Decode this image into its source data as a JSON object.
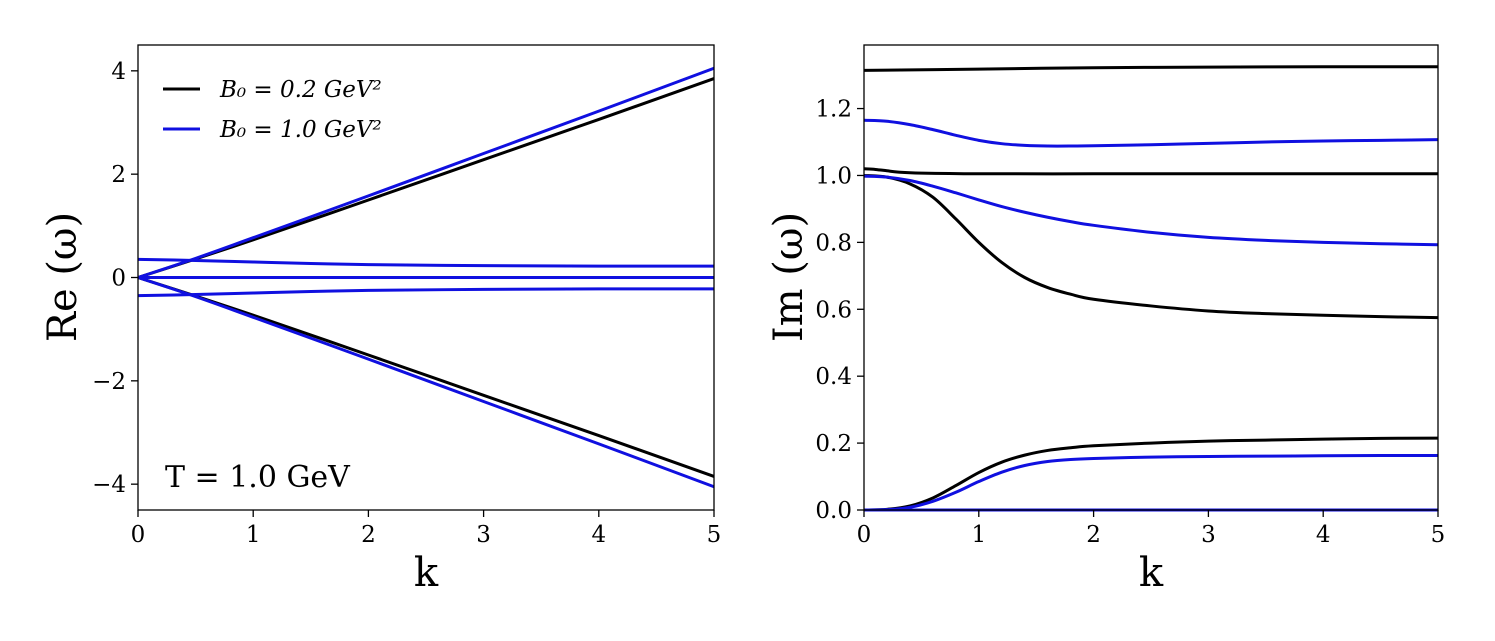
{
  "chart_data": [
    {
      "type": "line",
      "xlabel": "k",
      "ylabel": "Re (ω)",
      "xlim": [
        0,
        5
      ],
      "ylim": [
        -4.5,
        4.5
      ],
      "xticks": [
        0,
        1,
        2,
        3,
        4,
        5
      ],
      "xtick_labels": [
        "0",
        "1",
        "2",
        "3",
        "4",
        "5"
      ],
      "yticks": [
        -4,
        -2,
        0,
        2,
        4
      ],
      "ytick_labels": [
        "−4",
        "−2",
        "0",
        "2",
        "4"
      ],
      "grid": false,
      "legend": {
        "position": "top-left",
        "entries": [
          {
            "label": "B₀ = 0.2 GeV²",
            "color": "#000000"
          },
          {
            "label": "B₀ = 1.0 GeV²",
            "color": "#1010e0"
          }
        ]
      },
      "annotation": "T = 1.0 GeV",
      "series": [
        {
          "group": "B₀ = 0.2 GeV²",
          "color": "#000000",
          "x": [
            0,
            0.5,
            1,
            2,
            3,
            4,
            5
          ],
          "y": [
            0,
            0.36,
            0.73,
            1.5,
            2.28,
            3.06,
            3.85
          ]
        },
        {
          "group": "B₀ = 0.2 GeV²",
          "color": "#000000",
          "x": [
            0,
            0.5,
            1,
            2,
            3,
            4,
            5
          ],
          "y": [
            0,
            -0.36,
            -0.73,
            -1.5,
            -2.28,
            -3.06,
            -3.85
          ]
        },
        {
          "group": "B₀ = 0.2 GeV²",
          "color": "#000000",
          "x": [
            0,
            5
          ],
          "y": [
            0,
            0
          ]
        },
        {
          "group": "B₀ = 1.0 GeV²",
          "color": "#1010e0",
          "x": [
            0,
            0.5,
            1,
            2,
            3,
            4,
            5
          ],
          "y": [
            0,
            0.37,
            0.77,
            1.58,
            2.4,
            3.22,
            4.05
          ]
        },
        {
          "group": "B₀ = 1.0 GeV²",
          "color": "#1010e0",
          "x": [
            0,
            0.5,
            1,
            2,
            3,
            4,
            5
          ],
          "y": [
            0,
            -0.37,
            -0.77,
            -1.58,
            -2.4,
            -3.22,
            -4.05
          ]
        },
        {
          "group": "B₀ = 1.0 GeV²",
          "color": "#1010e0",
          "x": [
            0,
            0.5,
            1,
            1.5,
            2,
            3,
            4,
            5
          ],
          "y": [
            0.35,
            0.33,
            0.3,
            0.27,
            0.25,
            0.23,
            0.22,
            0.22
          ]
        },
        {
          "group": "B₀ = 1.0 GeV²",
          "color": "#1010e0",
          "x": [
            0,
            0.5,
            1,
            1.5,
            2,
            3,
            4,
            5
          ],
          "y": [
            -0.35,
            -0.33,
            -0.3,
            -0.27,
            -0.25,
            -0.23,
            -0.22,
            -0.22
          ]
        },
        {
          "group": "B₀ = 1.0 GeV²",
          "color": "#1010e0",
          "x": [
            0,
            5
          ],
          "y": [
            0,
            0
          ]
        }
      ]
    },
    {
      "type": "line",
      "xlabel": "k",
      "ylabel": "Im (ω)",
      "xlim": [
        0,
        5
      ],
      "ylim": [
        0,
        1.39
      ],
      "xticks": [
        0,
        1,
        2,
        3,
        4,
        5
      ],
      "xtick_labels": [
        "0",
        "1",
        "2",
        "3",
        "4",
        "5"
      ],
      "yticks": [
        0,
        0.2,
        0.4,
        0.6,
        0.8,
        1.0,
        1.2
      ],
      "ytick_labels": [
        "0.0",
        "0.2",
        "0.4",
        "0.6",
        "0.8",
        "1.0",
        "1.2"
      ],
      "grid": false,
      "series": [
        {
          "group": "B₀ = 0.2 GeV²",
          "color": "#000000",
          "x": [
            0,
            1,
            2,
            3,
            4,
            5
          ],
          "y": [
            1.314,
            1.318,
            1.322,
            1.324,
            1.325,
            1.325
          ]
        },
        {
          "group": "B₀ = 0.2 GeV²",
          "color": "#000000",
          "x": [
            0,
            0.1,
            0.2,
            0.3,
            0.5,
            1,
            2,
            3,
            4,
            5
          ],
          "y": [
            1.02,
            1.018,
            1.014,
            1.01,
            1.007,
            1.005,
            1.005,
            1.005,
            1.005,
            1.005
          ]
        },
        {
          "group": "B₀ = 0.2 GeV²",
          "color": "#000000",
          "x": [
            0,
            0.2,
            0.4,
            0.6,
            0.8,
            1.0,
            1.2,
            1.4,
            1.6,
            1.8,
            2.0,
            2.5,
            3,
            3.5,
            4,
            4.5,
            5
          ],
          "y": [
            1.0,
            0.995,
            0.975,
            0.935,
            0.87,
            0.8,
            0.74,
            0.695,
            0.665,
            0.645,
            0.63,
            0.61,
            0.595,
            0.587,
            0.582,
            0.578,
            0.575
          ]
        },
        {
          "group": "B₀ = 0.2 GeV²",
          "color": "#000000",
          "x": [
            0,
            0.2,
            0.4,
            0.6,
            0.8,
            1.0,
            1.2,
            1.4,
            1.6,
            1.8,
            2.0,
            2.5,
            3,
            3.5,
            4,
            4.5,
            5
          ],
          "y": [
            0,
            0.002,
            0.012,
            0.036,
            0.073,
            0.112,
            0.143,
            0.164,
            0.178,
            0.186,
            0.192,
            0.2,
            0.206,
            0.209,
            0.212,
            0.214,
            0.215
          ]
        },
        {
          "group": "B₀ = 0.2 GeV²",
          "color": "#000000",
          "x": [
            0,
            5
          ],
          "y": [
            0,
            0
          ]
        },
        {
          "group": "B₀ = 1.0 GeV²",
          "color": "#1010e0",
          "x": [
            0,
            0.2,
            0.4,
            0.6,
            0.8,
            1.0,
            1.2,
            1.4,
            1.6,
            1.8,
            2.0,
            2.5,
            3,
            3.5,
            4,
            4.5,
            5
          ],
          "y": [
            1.165,
            1.162,
            1.152,
            1.137,
            1.12,
            1.105,
            1.095,
            1.09,
            1.088,
            1.088,
            1.089,
            1.092,
            1.096,
            1.1,
            1.103,
            1.105,
            1.107
          ]
        },
        {
          "group": "B₀ = 1.0 GeV²",
          "color": "#1010e0",
          "x": [
            0,
            0.2,
            0.4,
            0.6,
            0.8,
            1.0,
            1.2,
            1.4,
            1.6,
            1.8,
            2.0,
            2.5,
            3,
            3.5,
            4,
            4.5,
            5
          ],
          "y": [
            0.998,
            0.995,
            0.985,
            0.968,
            0.948,
            0.927,
            0.907,
            0.89,
            0.875,
            0.862,
            0.851,
            0.83,
            0.815,
            0.806,
            0.8,
            0.796,
            0.793
          ]
        },
        {
          "group": "B₀ = 1.0 GeV²",
          "color": "#1010e0",
          "x": [
            0,
            0.2,
            0.4,
            0.6,
            0.8,
            1.0,
            1.2,
            1.4,
            1.6,
            1.8,
            2.0,
            2.5,
            3,
            3.5,
            4,
            4.5,
            5
          ],
          "y": [
            0,
            0.001,
            0.008,
            0.026,
            0.053,
            0.085,
            0.113,
            0.133,
            0.145,
            0.151,
            0.154,
            0.158,
            0.16,
            0.161,
            0.162,
            0.163,
            0.163
          ]
        },
        {
          "group": "B₀ = 1.0 GeV²",
          "color": "#1010e0",
          "x": [
            0,
            5
          ],
          "y": [
            0,
            0
          ]
        }
      ]
    }
  ]
}
